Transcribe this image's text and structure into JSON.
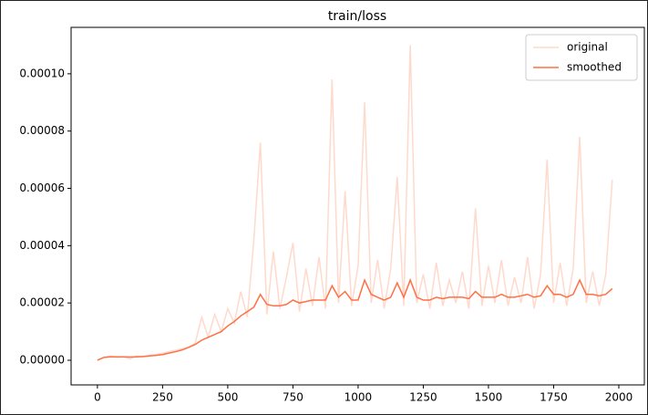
{
  "chart_data": {
    "type": "line",
    "title": "train/loss",
    "x": [
      0,
      25,
      50,
      75,
      100,
      125,
      150,
      175,
      200,
      225,
      250,
      275,
      300,
      325,
      350,
      375,
      400,
      425,
      450,
      475,
      500,
      525,
      550,
      575,
      600,
      625,
      650,
      675,
      700,
      725,
      750,
      775,
      800,
      825,
      850,
      875,
      900,
      925,
      950,
      975,
      1000,
      1025,
      1050,
      1075,
      1100,
      1125,
      1150,
      1175,
      1200,
      1225,
      1250,
      1275,
      1300,
      1325,
      1350,
      1375,
      1400,
      1425,
      1450,
      1475,
      1500,
      1525,
      1550,
      1575,
      1600,
      1625,
      1650,
      1675,
      1700,
      1725,
      1750,
      1775,
      1800,
      1825,
      1850,
      1875,
      1900,
      1925,
      1950,
      1975
    ],
    "series": [
      {
        "name": "original",
        "color": "#ffd9cc",
        "values": [
          0,
          1e-06,
          1.5e-06,
          1e-06,
          1.2e-06,
          5e-07,
          1.5e-06,
          1.2e-06,
          1.8e-06,
          2e-06,
          2.5e-06,
          3e-06,
          3.5e-06,
          4e-06,
          4.5e-06,
          6e-06,
          1.5e-05,
          8e-06,
          1.6e-05,
          1e-05,
          1.8e-05,
          1.3e-05,
          2.4e-05,
          1.5e-05,
          4.2e-05,
          7.6e-05,
          1.6e-05,
          3.8e-05,
          1.8e-05,
          2.9e-05,
          4.1e-05,
          1.7e-05,
          3.2e-05,
          1.9e-05,
          3.6e-05,
          1.8e-05,
          9.8e-05,
          2e-05,
          5.9e-05,
          1.9e-05,
          3.3e-05,
          9e-05,
          2e-05,
          3.5e-05,
          1.8e-05,
          3.2e-05,
          6.4e-05,
          1.9e-05,
          0.00011,
          2e-05,
          3e-05,
          1.8e-05,
          3.4e-05,
          1.9e-05,
          2.8e-05,
          2e-05,
          3.1e-05,
          1.8e-05,
          5.3e-05,
          1.9e-05,
          3.3e-05,
          2e-05,
          3.5e-05,
          1.9e-05,
          2.9e-05,
          2e-05,
          3.6e-05,
          1.8e-05,
          3e-05,
          7e-05,
          2e-05,
          3.4e-05,
          1.9e-05,
          3.2e-05,
          7.8e-05,
          2e-05,
          3.1e-05,
          1.9e-05,
          3e-05,
          6.3e-05
        ]
      },
      {
        "name": "smoothed",
        "color": "#ff7043",
        "values": [
          0,
          1e-06,
          1.2e-06,
          1.2e-06,
          1.2e-06,
          1.1e-06,
          1.2e-06,
          1.3e-06,
          1.5e-06,
          1.7e-06,
          2e-06,
          2.5e-06,
          3e-06,
          3.6e-06,
          4.5e-06,
          5.5e-06,
          7e-06,
          8e-06,
          9e-06,
          1e-05,
          1.2e-05,
          1.35e-05,
          1.55e-05,
          1.7e-05,
          1.85e-05,
          2.3e-05,
          1.95e-05,
          1.9e-05,
          1.9e-05,
          1.95e-05,
          2.1e-05,
          2e-05,
          2.05e-05,
          2.1e-05,
          2.1e-05,
          2.1e-05,
          2.6e-05,
          2.2e-05,
          2.4e-05,
          2.1e-05,
          2.1e-05,
          2.8e-05,
          2.3e-05,
          2.2e-05,
          2.1e-05,
          2.2e-05,
          2.7e-05,
          2.2e-05,
          2.8e-05,
          2.2e-05,
          2.1e-05,
          2.1e-05,
          2.2e-05,
          2.15e-05,
          2.2e-05,
          2.2e-05,
          2.2e-05,
          2.15e-05,
          2.4e-05,
          2.2e-05,
          2.2e-05,
          2.2e-05,
          2.3e-05,
          2.2e-05,
          2.2e-05,
          2.25e-05,
          2.3e-05,
          2.2e-05,
          2.25e-05,
          2.6e-05,
          2.3e-05,
          2.3e-05,
          2.2e-05,
          2.3e-05,
          2.8e-05,
          2.3e-05,
          2.3e-05,
          2.25e-05,
          2.3e-05,
          2.5e-05
        ]
      }
    ],
    "xlim": [
      -101,
      2098
    ],
    "xticks": [
      0,
      250,
      500,
      750,
      1000,
      1250,
      1500,
      1750,
      2000
    ],
    "ylim": [
      -8.6e-06,
      0.0001162
    ],
    "yticks": [
      {
        "value": 0,
        "label": "0.00000"
      },
      {
        "value": 2e-05,
        "label": "0.00002"
      },
      {
        "value": 4e-05,
        "label": "0.00004"
      },
      {
        "value": 6e-05,
        "label": "0.00006"
      },
      {
        "value": 8e-05,
        "label": "0.00008"
      },
      {
        "value": 0.0001,
        "label": "0.00010"
      }
    ],
    "legend": "upper right"
  }
}
